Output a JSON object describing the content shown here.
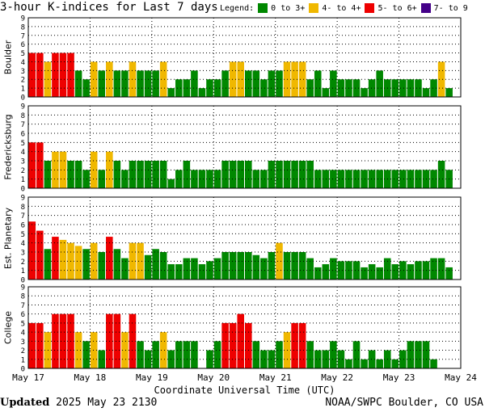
{
  "title": "3-hour K-indices for Last 7 days",
  "legend": {
    "label": "Legend:",
    "items": [
      {
        "label": "0 to 3+",
        "color": "#008800"
      },
      {
        "label": "4- to 4+",
        "color": "#f0b800"
      },
      {
        "label": "5- to 6+",
        "color": "#ee0000"
      },
      {
        "label": "7- to 9",
        "color": "#440088"
      }
    ]
  },
  "footer": {
    "updated_label": "Updated",
    "updated_value": "2025 May 23 2130",
    "credit": "NOAA/SWPC Boulder, CO USA"
  },
  "chart_data": {
    "type": "bar",
    "xlabel": "Coordinate Universal Time (UTC)",
    "x_tick_labels": [
      "May 17",
      "May 18",
      "May 19",
      "May 20",
      "May 21",
      "May 22",
      "May 23",
      "May 24"
    ],
    "y_tick_labels": [
      "0",
      "1",
      "2",
      "3",
      "4",
      "5",
      "6",
      "7",
      "8",
      "9"
    ],
    "ylim": [
      0,
      9
    ],
    "intervals_per_day": 8,
    "color_thresholds": {
      "green_below": 3.67,
      "yellow_below": 4.67,
      "red_below": 6.67
    },
    "series": [
      {
        "name": "Boulder",
        "values": [
          5,
          5,
          4,
          5,
          5,
          5,
          3,
          2,
          4,
          3,
          4,
          3,
          3,
          4,
          3,
          3,
          3,
          4,
          1,
          2,
          2,
          3,
          1,
          2,
          2,
          3,
          4,
          4,
          3,
          3,
          2,
          3,
          3,
          4,
          4,
          4,
          2,
          3,
          1,
          3,
          2,
          2,
          2,
          1,
          2,
          3,
          2,
          2,
          2,
          2,
          2,
          1,
          2,
          4,
          1,
          0
        ]
      },
      {
        "name": "Fredericksburg",
        "values": [
          5,
          5,
          3,
          4,
          4,
          3,
          3,
          2,
          4,
          2,
          4,
          3,
          2,
          3,
          3,
          3,
          3,
          3,
          1,
          2,
          3,
          2,
          2,
          2,
          2,
          3,
          3,
          3,
          3,
          2,
          2,
          3,
          3,
          3,
          3,
          3,
          3,
          2,
          2,
          2,
          2,
          2,
          2,
          2,
          2,
          2,
          2,
          2,
          2,
          2,
          2,
          2,
          2,
          3,
          2,
          0
        ]
      },
      {
        "name": "Est. Planetary",
        "values": [
          6.33,
          5.33,
          3.33,
          4.67,
          4.33,
          4,
          3.67,
          3.33,
          4,
          3,
          4.67,
          3.33,
          2.33,
          4,
          4,
          2.67,
          3.33,
          3,
          1.67,
          1.67,
          2.33,
          2.33,
          1.67,
          2,
          2.33,
          3,
          3,
          3,
          3,
          2.67,
          2.33,
          3,
          4,
          3,
          3,
          3,
          2.33,
          1.33,
          1.67,
          2.33,
          2,
          2,
          2,
          1.33,
          1.67,
          1.33,
          2.33,
          1.67,
          2,
          1.67,
          2,
          2,
          2.33,
          2.33,
          1.33,
          0
        ]
      },
      {
        "name": "College",
        "values": [
          5,
          5,
          4,
          6,
          6,
          6,
          4,
          3,
          4,
          2,
          6,
          6,
          4,
          6,
          3,
          2,
          3,
          4,
          2,
          3,
          3,
          3,
          0,
          2,
          3,
          5,
          5,
          6,
          5,
          3,
          2,
          2,
          3,
          4,
          5,
          5,
          3,
          2,
          2,
          3,
          2,
          1,
          3,
          1,
          2,
          1,
          2,
          1,
          2,
          3,
          3,
          3,
          1,
          0,
          0,
          0
        ]
      }
    ]
  }
}
